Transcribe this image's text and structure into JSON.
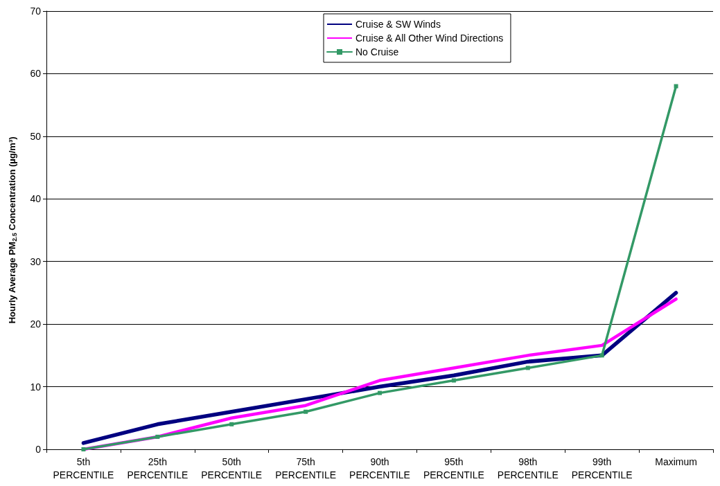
{
  "chart_data": {
    "type": "line",
    "ylabel": "Hourly Average PM$_{2.5}$ Concentration (µg/m³)",
    "categories": [
      "5th\nPERCENTILE",
      "25th\nPERCENTILE",
      "50th\nPERCENTILE",
      "75th\nPERCENTILE",
      "90th\nPERCENTILE",
      "95th\nPERCENTILE",
      "98th\nPERCENTILE",
      "99th\nPERCENTILE",
      "Maximum"
    ],
    "series": [
      {
        "name": "Cruise & SW Winds",
        "color": "#000080",
        "marker": "none",
        "values": [
          1,
          4,
          6,
          8,
          10,
          11.8,
          14,
          15,
          25
        ]
      },
      {
        "name": "Cruise & All Other Wind Directions",
        "color": "#ff00ff",
        "marker": "none",
        "values": [
          0,
          2,
          5,
          7,
          11,
          13,
          15,
          16.6,
          24
        ]
      },
      {
        "name": "No Cruise",
        "color": "#339966",
        "marker": "square",
        "values": [
          0,
          2,
          4,
          6,
          9,
          11,
          13,
          15,
          58
        ]
      }
    ],
    "ylim": [
      0,
      70
    ],
    "yticks": [
      0,
      10,
      20,
      30,
      40,
      50,
      60,
      70
    ],
    "grid": "y",
    "legend": "top",
    "line_style": "solid"
  }
}
